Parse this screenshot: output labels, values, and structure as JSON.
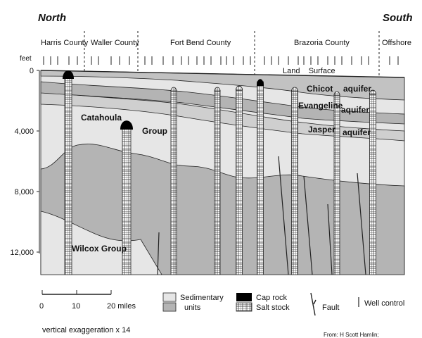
{
  "header": {
    "north": "North",
    "south": "South"
  },
  "counties": [
    "Harris County",
    "Waller County",
    "Fort Bend County",
    "Brazoria County",
    "Offshore"
  ],
  "depth_axis": {
    "unit_label": "feet",
    "ticks": [
      "0",
      "4,000",
      "8,000",
      "12,000"
    ]
  },
  "labels": {
    "land_surface": "Land    Surface",
    "chicot": "Chicot",
    "evangeline": "Evangeline",
    "jasper": "Jasper",
    "aquifer_1": "aquifer",
    "aquifer_2": "aquifer",
    "aquifer_3": "aquifer",
    "catahoula": "Catahoula",
    "group": "Group",
    "wilcox": "Wilcox Group"
  },
  "scale": {
    "ticks": [
      "0",
      "10",
      "20 miles"
    ],
    "exaggeration": "vertical exaggeration x 14"
  },
  "legend": {
    "sedimentary": "Sedimentary units",
    "sedimentary_line1": "Sedimentary",
    "sedimentary_line2": "units",
    "cap_rock": "Cap rock",
    "salt_stock": "Salt stock",
    "fault": "Fault",
    "well_control": "Well control"
  },
  "source": "From: H Scott Hamlin;",
  "colors": {
    "light": "#e6e6e6",
    "mid": "#b4b4b4",
    "dark": "#9a9a9a",
    "cap": "#000000",
    "line": "#222222"
  }
}
